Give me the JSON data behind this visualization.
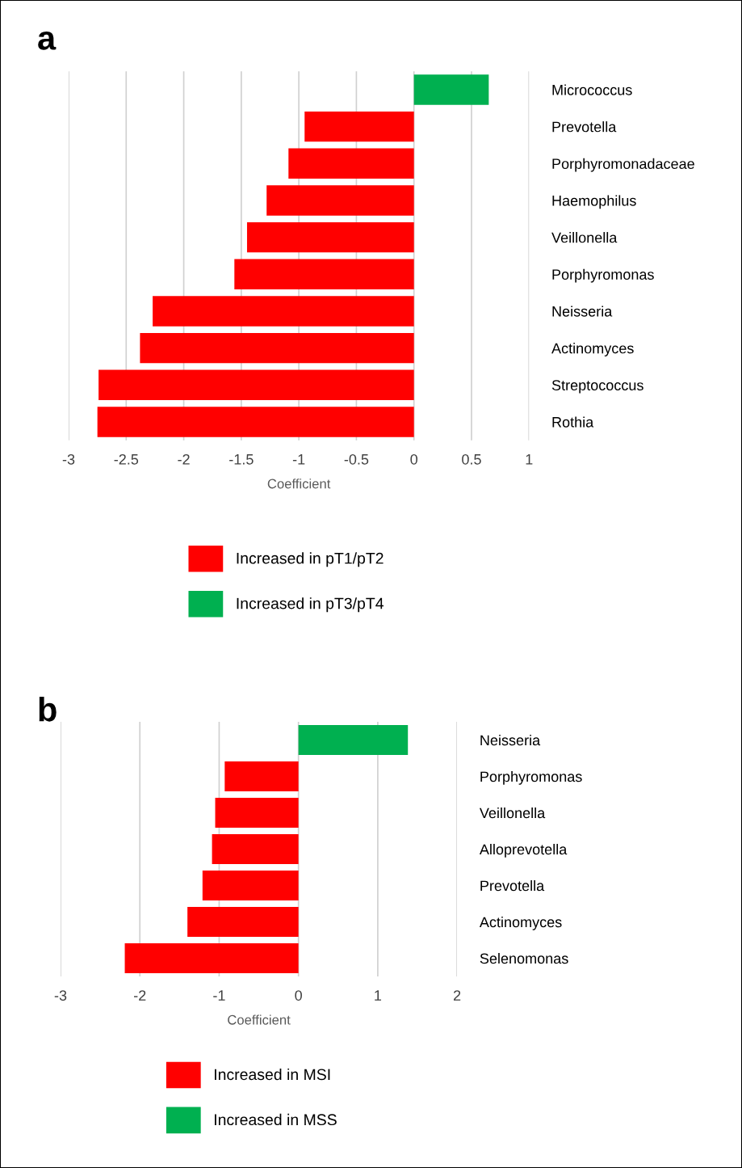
{
  "chart_data": [
    {
      "type": "bar",
      "orientation": "horizontal",
      "title": "a",
      "xlabel": "Coefficient",
      "categories": [
        "Micrococcus",
        "Prevotella",
        "Porphyromonadaceae",
        "Haemophilus",
        "Veillonella",
        "Porphyromonas",
        "Neisseria",
        "Actinomyces",
        "Streptococcus",
        "Rothia"
      ],
      "series": [
        {
          "name": "Increased in pT1/pT2",
          "color": "#ff0000",
          "values": [
            null,
            -0.95,
            -1.09,
            -1.28,
            -1.45,
            -1.56,
            -2.27,
            -2.38,
            -2.74,
            -2.75
          ]
        },
        {
          "name": "Increased in pT3/pT4",
          "color": "#00b050",
          "values": [
            0.65,
            null,
            null,
            null,
            null,
            null,
            null,
            null,
            null,
            null
          ]
        }
      ],
      "xlim": [
        -3,
        1
      ],
      "xticks": [
        -3,
        -2.5,
        -2,
        -1.5,
        -1,
        -0.5,
        0,
        0.5,
        1
      ],
      "grid": "x",
      "legend": "bottom"
    },
    {
      "type": "bar",
      "orientation": "horizontal",
      "title": "b",
      "xlabel": "Coefficient",
      "categories": [
        "Neisseria",
        "Porphyromonas",
        "Veillonella",
        "Alloprevotella",
        "Prevotella",
        "Actinomyces",
        "Selenomonas"
      ],
      "series": [
        {
          "name": "Increased in MSI",
          "color": "#ff0000",
          "values": [
            null,
            -0.93,
            -1.05,
            -1.09,
            -1.21,
            -1.4,
            -2.19
          ]
        },
        {
          "name": "Increased in MSS",
          "color": "#00b050",
          "values": [
            1.38,
            null,
            null,
            null,
            null,
            null,
            null
          ]
        }
      ],
      "xlim": [
        -3,
        2
      ],
      "xticks": [
        -3,
        -2,
        -1,
        0,
        1,
        2
      ],
      "grid": "x",
      "legend": "bottom"
    }
  ]
}
